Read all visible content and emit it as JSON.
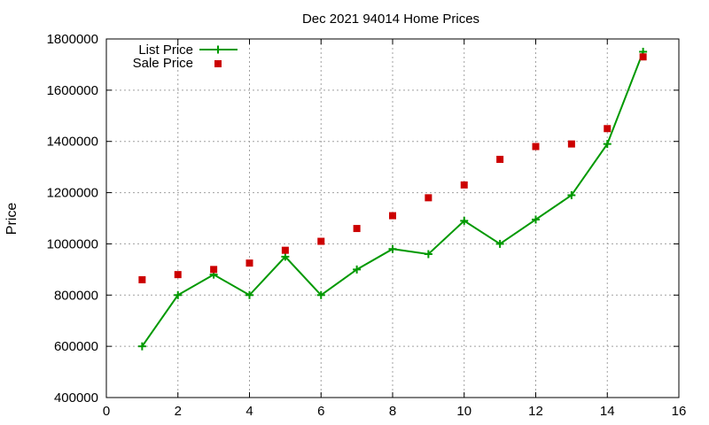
{
  "chart_data": {
    "type": "line",
    "title": "Dec 2021 94014 Home Prices",
    "xlabel": "",
    "ylabel": "Price",
    "xlim": [
      0,
      16
    ],
    "ylim": [
      400000,
      1800000
    ],
    "x_ticks": [
      0,
      2,
      4,
      6,
      8,
      10,
      12,
      14,
      16
    ],
    "y_ticks": [
      400000,
      600000,
      800000,
      1000000,
      1200000,
      1400000,
      1600000,
      1800000
    ],
    "grid": true,
    "legend_position": "top-left",
    "series": [
      {
        "name": "List Price",
        "style": "lines+points",
        "marker": "plus",
        "color": "#009900",
        "x": [
          1,
          2,
          3,
          4,
          5,
          6,
          7,
          8,
          9,
          10,
          11,
          12,
          13,
          14,
          15
        ],
        "y": [
          600000,
          800000,
          880000,
          800000,
          950000,
          800000,
          900000,
          980000,
          960000,
          1090000,
          1000000,
          1095000,
          1190000,
          1390000,
          1750000
        ]
      },
      {
        "name": "Sale Price",
        "style": "points",
        "marker": "square",
        "color": "#cc0000",
        "x": [
          1,
          2,
          3,
          4,
          5,
          6,
          7,
          8,
          9,
          10,
          11,
          12,
          13,
          14,
          15
        ],
        "y": [
          860000,
          880000,
          900000,
          925000,
          975000,
          1010000,
          1060000,
          1110000,
          1180000,
          1230000,
          1330000,
          1380000,
          1390000,
          1450000,
          1730000
        ]
      }
    ]
  }
}
